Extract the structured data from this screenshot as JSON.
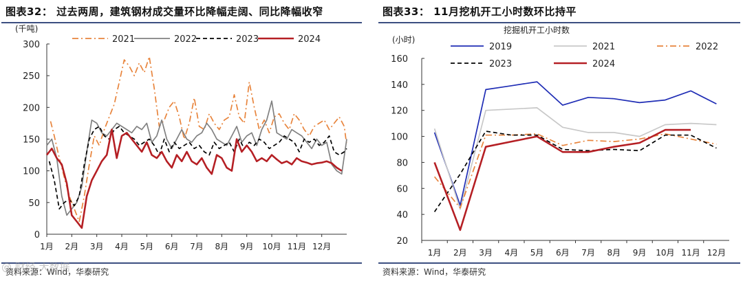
{
  "left": {
    "title": "图表32： 过去两周，建筑钢材成交量环比降幅走阔、同比降幅收窄",
    "source": "资料来源：Wind，华泰研究",
    "watermark": "@ 财经 大数据",
    "unit_label": "(千吨)"
  },
  "right": {
    "title": "图表33： 11月挖机开工小时数环比持平",
    "source": "资料来源：Wind，华泰研究"
  },
  "colors": {
    "s2019": "#1f2db5",
    "s2021_right": "#c8c8c8",
    "s2021_left": "#e8843c",
    "s2022_left": "#808080",
    "s2022_right": "#e8843c",
    "s2023": "#000000",
    "s2024": "#b51f24",
    "axis": "#333333",
    "rule": "#3b4e80"
  },
  "chart_data": [
    {
      "type": "line",
      "title": "",
      "ylabel": "(千吨)",
      "xlabel": "",
      "ylim": [
        0,
        300
      ],
      "yticks": [
        0,
        50,
        100,
        150,
        200,
        250,
        300
      ],
      "x_tick_labels": [
        "1月",
        "2月",
        "3月",
        "4月",
        "5月",
        "6月",
        "7月",
        "8月",
        "9月",
        "10月",
        "11月",
        "12月"
      ],
      "x_domain": [
        0,
        12
      ],
      "legend_position": "top",
      "series": [
        {
          "name": "2021",
          "style": "dash-dot",
          "color": "#e8843c",
          "x": [
            0.15,
            0.3,
            0.5,
            0.7,
            0.9,
            1.1,
            1.3,
            1.5,
            1.7,
            1.9,
            2.1,
            2.3,
            2.5,
            2.7,
            2.9,
            3.1,
            3.3,
            3.5,
            3.7,
            3.9,
            4.1,
            4.3,
            4.5,
            4.7,
            4.9,
            5.1,
            5.3,
            5.5,
            5.7,
            5.9,
            6.1,
            6.3,
            6.5,
            6.7,
            6.9,
            7.1,
            7.3,
            7.5,
            7.7,
            7.9,
            8.1,
            8.3,
            8.5,
            8.7,
            8.9,
            9.1,
            9.3,
            9.5,
            9.7,
            9.9,
            10.1,
            10.3,
            10.5,
            10.7,
            10.9,
            11.1,
            11.3,
            11.5,
            11.7,
            11.9,
            12.1
          ],
          "y": [
            178,
            155,
            120,
            90,
            60,
            40,
            20,
            60,
            110,
            155,
            140,
            165,
            185,
            205,
            240,
            275,
            265,
            250,
            270,
            255,
            280,
            230,
            170,
            180,
            200,
            210,
            185,
            150,
            175,
            215,
            170,
            165,
            190,
            175,
            165,
            180,
            185,
            220,
            185,
            175,
            240,
            200,
            165,
            180,
            160,
            185,
            190,
            175,
            165,
            190,
            180,
            165,
            155,
            170,
            175,
            180,
            165,
            175,
            185,
            170,
            140
          ]
        },
        {
          "name": "2022",
          "style": "solid",
          "color": "#808080",
          "x": [
            0,
            0.2,
            0.4,
            0.6,
            0.8,
            1.0,
            1.2,
            1.4,
            1.6,
            1.8,
            2.0,
            2.2,
            2.4,
            2.6,
            2.8,
            3.0,
            3.2,
            3.4,
            3.6,
            3.8,
            4.0,
            4.2,
            4.4,
            4.6,
            4.8,
            5.0,
            5.2,
            5.4,
            5.6,
            5.8,
            6.0,
            6.2,
            6.4,
            6.6,
            6.8,
            7.0,
            7.2,
            7.4,
            7.6,
            7.8,
            8.0,
            8.2,
            8.4,
            8.6,
            8.8,
            9.0,
            9.2,
            9.4,
            9.6,
            9.8,
            10.0,
            10.2,
            10.4,
            10.6,
            10.8,
            11.0,
            11.2,
            11.4,
            11.6,
            11.8,
            12.0
          ],
          "y": [
            140,
            150,
            120,
            60,
            30,
            40,
            50,
            75,
            130,
            180,
            175,
            160,
            155,
            165,
            175,
            170,
            165,
            160,
            170,
            165,
            175,
            145,
            155,
            180,
            150,
            135,
            150,
            165,
            150,
            145,
            155,
            160,
            175,
            165,
            150,
            145,
            140,
            155,
            170,
            145,
            155,
            160,
            140,
            165,
            180,
            210,
            160,
            155,
            150,
            165,
            160,
            155,
            145,
            135,
            150,
            140,
            145,
            110,
            100,
            95,
            150
          ]
        },
        {
          "name": "2023",
          "style": "dashed",
          "color": "#000000",
          "x": [
            0.1,
            0.3,
            0.5,
            0.7,
            0.9,
            1.1,
            1.3,
            1.5,
            1.7,
            1.9,
            2.1,
            2.3,
            2.5,
            2.7,
            2.9,
            3.1,
            3.3,
            3.5,
            3.7,
            3.9,
            4.1,
            4.3,
            4.5,
            4.7,
            4.9,
            5.1,
            5.3,
            5.5,
            5.7,
            5.9,
            6.1,
            6.3,
            6.5,
            6.7,
            6.9,
            7.1,
            7.3,
            7.5,
            7.7,
            7.9,
            8.1,
            8.3,
            8.5,
            8.7,
            8.9,
            9.1,
            9.3,
            9.5,
            9.7,
            9.9,
            10.1,
            10.3,
            10.5,
            10.7,
            10.9,
            11.1,
            11.3,
            11.5,
            11.7,
            11.9,
            12.1
          ],
          "y": [
            115,
            85,
            40,
            50,
            55,
            45,
            60,
            110,
            150,
            165,
            170,
            155,
            150,
            165,
            170,
            160,
            155,
            150,
            140,
            145,
            150,
            140,
            125,
            150,
            130,
            145,
            135,
            140,
            145,
            135,
            140,
            130,
            125,
            145,
            135,
            140,
            145,
            130,
            150,
            135,
            145,
            140,
            150,
            145,
            135,
            140,
            145,
            155,
            150,
            145,
            130,
            150,
            145,
            150,
            140,
            145,
            155,
            130,
            125,
            130,
            135
          ]
        },
        {
          "name": "2024",
          "style": "solid",
          "color": "#b51f24",
          "x": [
            0,
            0.2,
            0.4,
            0.6,
            0.8,
            1.0,
            1.2,
            1.4,
            1.6,
            1.8,
            2.0,
            2.2,
            2.4,
            2.6,
            2.8,
            3.0,
            3.2,
            3.4,
            3.6,
            3.8,
            4.0,
            4.2,
            4.4,
            4.6,
            4.8,
            5.0,
            5.2,
            5.4,
            5.6,
            5.8,
            6.0,
            6.2,
            6.4,
            6.6,
            6.8,
            7.0,
            7.2,
            7.4,
            7.6,
            7.8,
            8.0,
            8.2,
            8.4,
            8.6,
            8.8,
            9.0,
            9.2,
            9.4,
            9.6,
            9.8,
            10.0,
            10.2,
            10.4,
            10.6,
            10.8,
            11.0,
            11.2,
            11.4,
            11.6,
            11.8
          ],
          "y": [
            125,
            135,
            120,
            110,
            80,
            30,
            20,
            10,
            60,
            85,
            100,
            115,
            125,
            165,
            120,
            155,
            160,
            150,
            140,
            130,
            145,
            125,
            120,
            130,
            115,
            105,
            125,
            115,
            130,
            115,
            110,
            120,
            105,
            95,
            125,
            120,
            105,
            100,
            150,
            130,
            140,
            130,
            115,
            120,
            115,
            125,
            118,
            112,
            115,
            110,
            120,
            115,
            113,
            110,
            112,
            113,
            115,
            112,
            105,
            100
          ]
        }
      ]
    },
    {
      "type": "line",
      "title": "挖掘机开工小时数",
      "ylabel": "(小时)",
      "xlabel": "",
      "ylim": [
        20,
        160
      ],
      "yticks": [
        20,
        40,
        60,
        80,
        100,
        120,
        140,
        160
      ],
      "categories": [
        "1月",
        "2月",
        "3月",
        "4月",
        "5月",
        "6月",
        "7月",
        "8月",
        "9月",
        "10月",
        "11月",
        "12月"
      ],
      "legend_position": "top",
      "series": [
        {
          "name": "2019",
          "style": "solid",
          "color": "#1f2db5",
          "values": [
            103,
            47,
            136,
            139,
            142,
            124,
            130,
            129,
            126,
            128,
            135,
            125
          ]
        },
        {
          "name": "2021",
          "style": "solid",
          "color": "#c8c8c8",
          "values": [
            106,
            44,
            120,
            121,
            122,
            107,
            103,
            103,
            100,
            109,
            110,
            109
          ]
        },
        {
          "name": "2022",
          "style": "dash-dot",
          "color": "#e8843c",
          "values": [
            69,
            45,
            101,
            101,
            102,
            93,
            97,
            96,
            98,
            102,
            98,
            94
          ]
        },
        {
          "name": "2023",
          "style": "dashed",
          "color": "#000000",
          "values": [
            42,
            71,
            104,
            101,
            101,
            90,
            89,
            90,
            89,
            101,
            101,
            91
          ]
        },
        {
          "name": "2024",
          "style": "solid",
          "color": "#b51f24",
          "values": [
            80,
            28,
            92,
            96,
            100,
            88,
            88,
            92,
            95,
            105,
            105,
            null
          ]
        }
      ]
    }
  ]
}
